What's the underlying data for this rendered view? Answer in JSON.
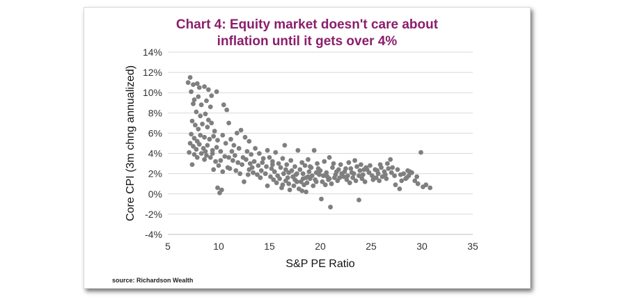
{
  "chart_data": {
    "type": "scatter",
    "title_line1": "Chart 4: Equity market doesn't care about",
    "title_line2": "inflation until it gets over 4%",
    "xlabel": "S&P PE Ratio",
    "ylabel": "Core CPI (3m chng annualized)",
    "xlim": [
      5,
      35
    ],
    "ylim": [
      -4,
      14
    ],
    "x_ticks": [
      5,
      10,
      15,
      20,
      25,
      30,
      35
    ],
    "y_ticks": [
      -4,
      -2,
      0,
      2,
      4,
      6,
      8,
      10,
      12,
      14
    ],
    "y_tick_labels": [
      "-4%",
      "-2%",
      "0%",
      "2%",
      "4%",
      "6%",
      "8%",
      "10%",
      "12%",
      "14%"
    ],
    "grid": "horizontal",
    "legend": "none",
    "marker_color": "#7f7f7f",
    "points": [
      [
        7.0,
        11.0
      ],
      [
        7.2,
        11.5
      ],
      [
        7.5,
        10.8
      ],
      [
        7.9,
        10.9
      ],
      [
        8.1,
        10.5
      ],
      [
        8.6,
        10.6
      ],
      [
        9.0,
        10.3
      ],
      [
        9.3,
        9.7
      ],
      [
        9.8,
        10.1
      ],
      [
        7.3,
        10.1
      ],
      [
        7.6,
        9.3
      ],
      [
        7.5,
        8.9
      ],
      [
        8.0,
        9.6
      ],
      [
        8.3,
        8.8
      ],
      [
        8.8,
        9.2
      ],
      [
        9.2,
        8.6
      ],
      [
        7.8,
        8.1
      ],
      [
        8.2,
        7.7
      ],
      [
        8.7,
        7.9
      ],
      [
        9.0,
        7.3
      ],
      [
        7.4,
        7.2
      ],
      [
        7.7,
        6.8
      ],
      [
        8.0,
        6.4
      ],
      [
        8.4,
        6.9
      ],
      [
        8.9,
        6.6
      ],
      [
        9.3,
        7.0
      ],
      [
        9.6,
        6.2
      ],
      [
        7.3,
        5.9
      ],
      [
        7.6,
        5.5
      ],
      [
        7.9,
        5.2
      ],
      [
        8.2,
        5.8
      ],
      [
        8.6,
        5.6
      ],
      [
        9.1,
        5.4
      ],
      [
        9.5,
        5.7
      ],
      [
        9.9,
        5.3
      ],
      [
        7.2,
        5.0
      ],
      [
        7.5,
        4.7
      ],
      [
        7.8,
        4.4
      ],
      [
        8.1,
        4.9
      ],
      [
        8.5,
        4.5
      ],
      [
        8.9,
        4.8
      ],
      [
        9.4,
        4.3
      ],
      [
        9.8,
        4.6
      ],
      [
        7.1,
        4.1
      ],
      [
        7.6,
        3.9
      ],
      [
        8.3,
        4.0
      ],
      [
        8.8,
        3.8
      ],
      [
        9.2,
        3.6
      ],
      [
        7.4,
        2.9
      ],
      [
        8.6,
        3.4
      ],
      [
        9.7,
        3.2
      ],
      [
        10.2,
        4.2
      ],
      [
        10.6,
        3.7
      ],
      [
        10.0,
        2.8
      ],
      [
        9.5,
        2.4
      ],
      [
        10.4,
        2.2
      ],
      [
        10.9,
        2.6
      ],
      [
        9.9,
        0.6
      ],
      [
        10.1,
        0.1
      ],
      [
        10.3,
        0.4
      ],
      [
        10.5,
        8.8
      ],
      [
        10.8,
        8.3
      ],
      [
        11.0,
        7.0
      ],
      [
        10.4,
        5.8
      ],
      [
        10.7,
        5.0
      ],
      [
        11.2,
        5.4
      ],
      [
        11.5,
        4.8
      ],
      [
        11.8,
        6.0
      ],
      [
        12.2,
        6.3
      ],
      [
        12.6,
        5.6
      ],
      [
        13.0,
        5.2
      ],
      [
        11.3,
        4.2
      ],
      [
        11.6,
        3.8
      ],
      [
        12.0,
        4.5
      ],
      [
        12.4,
        3.6
      ],
      [
        12.8,
        4.2
      ],
      [
        13.2,
        3.9
      ],
      [
        13.6,
        4.5
      ],
      [
        14.0,
        4.0
      ],
      [
        14.4,
        3.5
      ],
      [
        14.8,
        4.3
      ],
      [
        11.4,
        3.3
      ],
      [
        11.9,
        3.1
      ],
      [
        12.3,
        2.9
      ],
      [
        12.7,
        3.4
      ],
      [
        13.1,
        3.0
      ],
      [
        13.5,
        3.2
      ],
      [
        13.9,
        2.8
      ],
      [
        14.3,
        3.1
      ],
      [
        14.7,
        2.7
      ],
      [
        11.1,
        2.5
      ],
      [
        11.7,
        2.3
      ],
      [
        12.1,
        2.0
      ],
      [
        12.5,
        1.2
      ],
      [
        13.0,
        2.4
      ],
      [
        13.4,
        2.1
      ],
      [
        13.8,
        1.9
      ],
      [
        14.2,
        2.3
      ],
      [
        14.6,
        2.0
      ],
      [
        15.0,
        3.6
      ],
      [
        15.3,
        3.2
      ],
      [
        15.6,
        4.1
      ],
      [
        15.9,
        3.0
      ],
      [
        16.3,
        3.5
      ],
      [
        16.7,
        2.9
      ],
      [
        17.1,
        3.3
      ],
      [
        17.5,
        2.7
      ],
      [
        15.2,
        2.5
      ],
      [
        15.5,
        2.2
      ],
      [
        15.8,
        1.8
      ],
      [
        16.1,
        2.6
      ],
      [
        16.4,
        2.0
      ],
      [
        16.8,
        1.6
      ],
      [
        17.2,
        2.3
      ],
      [
        17.6,
        1.9
      ],
      [
        15.4,
        1.4
      ],
      [
        15.7,
        1.1
      ],
      [
        16.0,
        1.5
      ],
      [
        16.3,
        0.9
      ],
      [
        16.6,
        1.3
      ],
      [
        16.9,
        1.0
      ],
      [
        17.3,
        1.7
      ],
      [
        17.7,
        1.2
      ],
      [
        14.8,
        0.8
      ],
      [
        15.1,
        1.7
      ],
      [
        16.2,
        0.6
      ],
      [
        17.0,
        0.4
      ],
      [
        17.4,
        0.8
      ],
      [
        16.5,
        4.8
      ],
      [
        17.8,
        4.3
      ],
      [
        18.0,
        2.4
      ],
      [
        18.3,
        2.0
      ],
      [
        18.6,
        1.6
      ],
      [
        18.9,
        2.2
      ],
      [
        19.2,
        1.8
      ],
      [
        19.5,
        1.4
      ],
      [
        19.8,
        2.5
      ],
      [
        18.1,
        1.2
      ],
      [
        18.4,
        0.9
      ],
      [
        18.7,
        1.1
      ],
      [
        19.0,
        1.5
      ],
      [
        19.3,
        0.8
      ],
      [
        19.6,
        1.2
      ],
      [
        19.9,
        1.9
      ],
      [
        18.2,
        3.1
      ],
      [
        18.5,
        2.8
      ],
      [
        18.8,
        3.4
      ],
      [
        19.1,
        2.6
      ],
      [
        19.4,
        4.3
      ],
      [
        19.7,
        3.0
      ],
      [
        17.9,
        0.5
      ],
      [
        18.2,
        0.3
      ],
      [
        18.6,
        0.2
      ],
      [
        20.0,
        2.3
      ],
      [
        20.3,
        1.8
      ],
      [
        20.6,
        2.1
      ],
      [
        20.9,
        1.5
      ],
      [
        21.2,
        2.6
      ],
      [
        21.5,
        1.9
      ],
      [
        21.8,
        2.4
      ],
      [
        22.1,
        2.0
      ],
      [
        20.2,
        1.2
      ],
      [
        20.5,
        0.9
      ],
      [
        20.8,
        1.4
      ],
      [
        21.1,
        1.0
      ],
      [
        21.4,
        1.6
      ],
      [
        21.7,
        1.3
      ],
      [
        22.0,
        2.9
      ],
      [
        22.3,
        1.7
      ],
      [
        20.4,
        3.2
      ],
      [
        20.9,
        3.6
      ],
      [
        21.3,
        3.0
      ],
      [
        20.1,
        -0.5
      ],
      [
        21.0,
        -1.3
      ],
      [
        22.4,
        2.2
      ],
      [
        22.7,
        1.8
      ],
      [
        23.0,
        2.5
      ],
      [
        23.3,
        2.0
      ],
      [
        23.6,
        2.7
      ],
      [
        23.9,
        2.3
      ],
      [
        24.2,
        1.9
      ],
      [
        24.5,
        2.6
      ],
      [
        22.6,
        1.4
      ],
      [
        22.9,
        1.1
      ],
      [
        23.2,
        1.6
      ],
      [
        23.5,
        1.3
      ],
      [
        23.8,
        1.8
      ],
      [
        24.1,
        1.5
      ],
      [
        24.4,
        1.2
      ],
      [
        22.8,
        3.1
      ],
      [
        23.4,
        3.3
      ],
      [
        24.0,
        2.9
      ],
      [
        24.6,
        2.4
      ],
      [
        23.8,
        -0.6
      ],
      [
        24.8,
        2.1
      ],
      [
        25.1,
        1.8
      ],
      [
        25.4,
        2.4
      ],
      [
        25.7,
        2.0
      ],
      [
        26.0,
        2.6
      ],
      [
        26.3,
        2.2
      ],
      [
        26.6,
        3.0
      ],
      [
        26.9,
        3.4
      ],
      [
        25.2,
        1.4
      ],
      [
        25.5,
        1.6
      ],
      [
        25.8,
        1.3
      ],
      [
        26.1,
        1.7
      ],
      [
        26.4,
        1.9
      ],
      [
        26.7,
        2.5
      ],
      [
        27.0,
        2.1
      ],
      [
        27.3,
        1.8
      ],
      [
        27.6,
        2.4
      ],
      [
        27.9,
        1.9
      ],
      [
        28.2,
        2.0
      ],
      [
        28.5,
        1.6
      ],
      [
        28.8,
        2.2
      ],
      [
        27.4,
        0.9
      ],
      [
        27.8,
        0.5
      ],
      [
        28.0,
        1.3
      ],
      [
        28.4,
        1.5
      ],
      [
        28.7,
        1.8
      ],
      [
        29.0,
        2.1
      ],
      [
        29.3,
        1.3
      ],
      [
        29.6,
        1.0
      ],
      [
        29.9,
        4.1
      ],
      [
        30.1,
        0.7
      ],
      [
        30.4,
        0.9
      ],
      [
        30.8,
        0.6
      ],
      [
        29.5,
        1.7
      ],
      [
        24.9,
        2.8
      ],
      [
        25.9,
        2.9
      ],
      [
        26.5,
        1.5
      ],
      [
        15.3,
        2.9
      ],
      [
        16.9,
        2.1
      ],
      [
        17.5,
        1.4
      ],
      [
        18.8,
        1.7
      ],
      [
        19.6,
        2.1
      ],
      [
        20.7,
        1.7
      ],
      [
        21.6,
        2.2
      ],
      [
        22.5,
        2.5
      ],
      [
        14.1,
        1.6
      ],
      [
        13.3,
        2.6
      ],
      [
        12.9,
        1.9
      ],
      [
        11.0,
        3.6
      ],
      [
        10.2,
        3.3
      ],
      [
        9.4,
        4.0
      ],
      [
        8.7,
        4.2
      ],
      [
        7.9,
        3.6
      ],
      [
        16.6,
        2.4
      ],
      [
        17.7,
        2.0
      ],
      [
        18.3,
        1.5
      ],
      [
        19.0,
        2.7
      ],
      [
        21.9,
        1.6
      ],
      [
        23.1,
        2.1
      ],
      [
        24.3,
        2.4
      ],
      [
        25.6,
        2.3
      ],
      [
        27.1,
        2.6
      ],
      [
        28.6,
        2.3
      ]
    ]
  },
  "source": "source: Richardson Wealth"
}
